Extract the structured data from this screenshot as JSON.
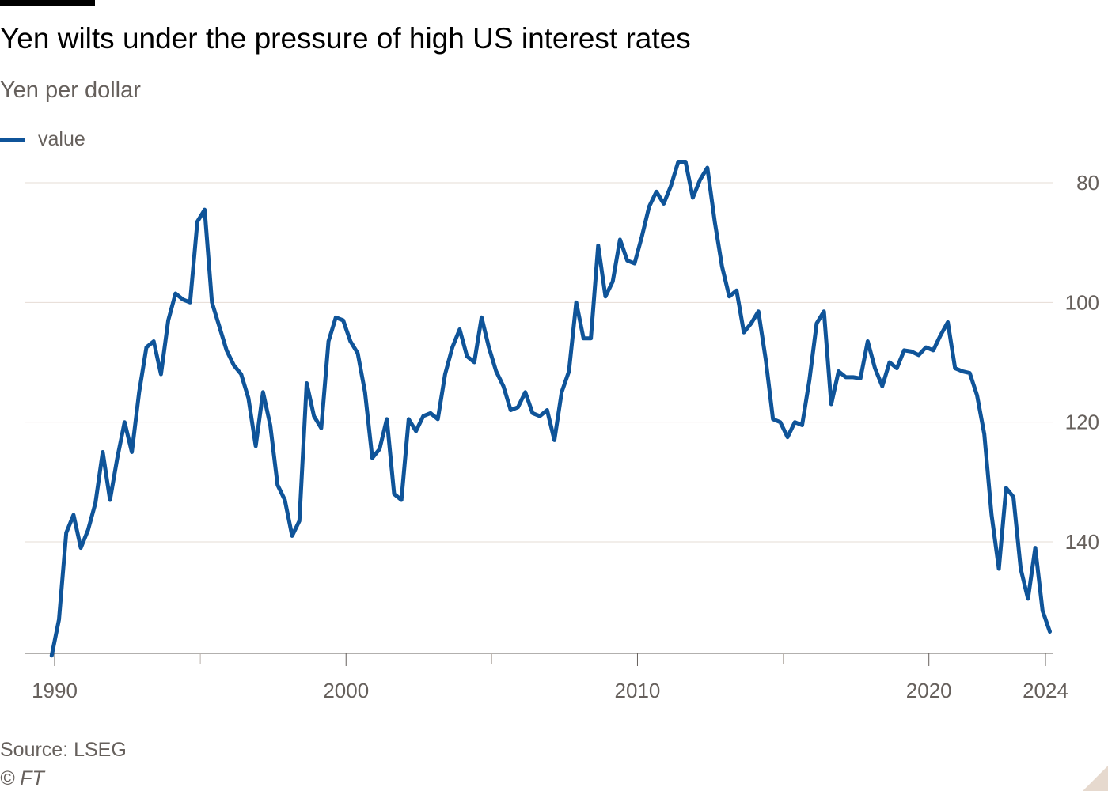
{
  "title": "Yen wilts under the pressure of high US interest rates",
  "subtitle": "Yen per dollar",
  "source": "Source: LSEG",
  "copyright": "© FT",
  "colors": {
    "series": "#0f5499",
    "grid": "#e6dcd4",
    "text": "#66605c",
    "background": "#ffffff"
  },
  "chart_data": {
    "type": "line",
    "title": "Yen wilts under the pressure of high US interest rates",
    "ylabel": "Yen per dollar",
    "xlabel": "",
    "y_axis_inverted": true,
    "y_axis_side": "right",
    "ylim": [
      159,
      76
    ],
    "xlim": [
      1989.9,
      2024.3
    ],
    "yticks": [
      80,
      100,
      120,
      140
    ],
    "xticks": [
      1990,
      2000,
      2010,
      2020,
      2024
    ],
    "grid": true,
    "legend": {
      "position": "top-left",
      "entries": [
        "value"
      ]
    },
    "series": [
      {
        "name": "value",
        "color": "#0f5499",
        "x": [
          1989.9,
          1990.15,
          1990.4,
          1990.65,
          1990.9,
          1991.15,
          1991.4,
          1991.65,
          1991.9,
          1992.15,
          1992.4,
          1992.65,
          1992.9,
          1993.15,
          1993.4,
          1993.65,
          1993.9,
          1994.15,
          1994.4,
          1994.65,
          1994.9,
          1995.15,
          1995.4,
          1995.65,
          1995.9,
          1996.15,
          1996.4,
          1996.65,
          1996.9,
          1997.15,
          1997.4,
          1997.65,
          1997.9,
          1998.15,
          1998.4,
          1998.65,
          1998.9,
          1999.15,
          1999.4,
          1999.65,
          1999.9,
          2000.15,
          2000.4,
          2000.65,
          2000.9,
          2001.15,
          2001.4,
          2001.65,
          2001.9,
          2002.15,
          2002.4,
          2002.65,
          2002.9,
          2003.15,
          2003.4,
          2003.65,
          2003.9,
          2004.15,
          2004.4,
          2004.65,
          2004.9,
          2005.15,
          2005.4,
          2005.65,
          2005.9,
          2006.15,
          2006.4,
          2006.65,
          2006.9,
          2007.15,
          2007.4,
          2007.65,
          2007.9,
          2008.15,
          2008.4,
          2008.65,
          2008.9,
          2009.15,
          2009.4,
          2009.65,
          2009.9,
          2010.15,
          2010.4,
          2010.65,
          2010.9,
          2011.15,
          2011.4,
          2011.65,
          2011.9,
          2012.15,
          2012.4,
          2012.65,
          2012.9,
          2013.15,
          2013.4,
          2013.65,
          2013.9,
          2014.15,
          2014.4,
          2014.65,
          2014.9,
          2015.15,
          2015.4,
          2015.65,
          2015.9,
          2016.15,
          2016.4,
          2016.65,
          2016.9,
          2017.15,
          2017.4,
          2017.65,
          2017.9,
          2018.15,
          2018.4,
          2018.65,
          2018.9,
          2019.15,
          2019.4,
          2019.65,
          2019.9,
          2020.15,
          2020.4,
          2020.65,
          2020.9,
          2021.15,
          2021.4,
          2021.65,
          2021.9,
          2022.15,
          2022.4,
          2022.65,
          2022.9,
          2023.15,
          2023.4,
          2023.65,
          2023.9,
          2024.15
        ],
        "y": [
          159,
          153,
          138.5,
          135.5,
          141,
          138,
          133.5,
          125,
          133,
          126,
          120,
          125,
          115,
          107.5,
          106.5,
          112,
          103,
          98.5,
          99.5,
          100,
          86.5,
          84.5,
          100,
          104,
          108,
          110.5,
          112,
          116,
          124,
          115,
          120.5,
          130.5,
          133,
          139,
          136.5,
          113.5,
          119,
          121,
          106.5,
          102.5,
          103,
          106.5,
          108.5,
          115,
          126,
          124.5,
          119.5,
          132,
          133,
          119.5,
          121.5,
          119,
          118.5,
          119.5,
          112,
          107.5,
          104.5,
          109,
          110,
          102.5,
          107.5,
          111.5,
          114,
          118,
          117.5,
          115,
          118.5,
          119,
          118,
          123,
          115,
          111.5,
          100,
          106,
          106,
          90.5,
          99,
          96.5,
          89.5,
          93,
          93.5,
          89,
          84,
          81.5,
          83.5,
          80.5,
          76.5,
          76.5,
          82.5,
          79.5,
          77.5,
          86.5,
          94,
          99,
          98,
          105,
          103.5,
          101.5,
          109.5,
          119.5,
          120,
          122.5,
          120,
          120.5,
          113,
          103.5,
          101.5,
          117,
          111.5,
          112.5,
          112.5,
          112.7,
          106.5,
          111,
          114,
          110,
          111,
          108,
          108.2,
          108.8,
          107.5,
          108,
          105.5,
          103.3,
          111,
          111.5,
          111.8,
          115.5,
          122,
          135.5,
          144.5,
          131,
          132.5,
          144.5,
          149.5,
          141,
          151.5,
          155
        ]
      }
    ]
  }
}
